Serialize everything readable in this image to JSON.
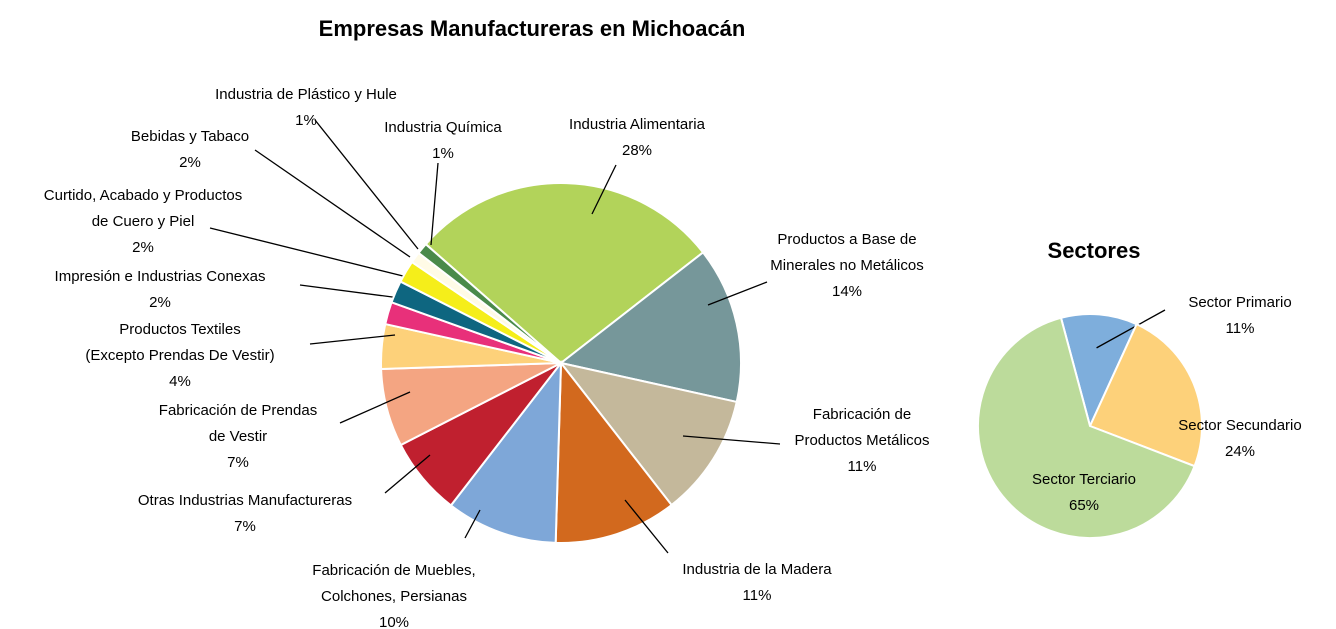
{
  "chart_data": [
    {
      "type": "pie",
      "title": "Empresas Manufactureras en Michoacán",
      "categories": [
        "Industria Alimentaria",
        "Productos a Base de Minerales no Metálicos",
        "Fabricación de Productos Metálicos",
        "Industria de la Madera",
        "Fabricación de Muebles, Colchones, Persianas",
        "Otras Industrias Manufactureras",
        "Fabricación de Prendas de Vestir",
        "Productos Textiles (Excepto Prendas De Vestir)",
        "Impresión e Industrias Conexas",
        "Curtido, Acabado y Productos de Cuero y Piel",
        "Bebidas y Tabaco",
        "Industria de Plástico y Hule",
        "Industria Química"
      ],
      "values": [
        28,
        14,
        11,
        11,
        10,
        7,
        7,
        4,
        2,
        2,
        2,
        1,
        1
      ],
      "value_labels": [
        "28%",
        "14%",
        "11%",
        "11%",
        "10%",
        "7%",
        "7%",
        "4%",
        "2%",
        "2%",
        "2%",
        "1%",
        "1%"
      ],
      "colors": [
        "#b2d35a",
        "#76979a",
        "#c4b89b",
        "#d2691e",
        "#7ea7d8",
        "#c0202f",
        "#f4a582",
        "#fdd17a",
        "#e8307a",
        "#0e6680",
        "#f5ee1a",
        "#fffbe6",
        "#4a8a4a"
      ]
    },
    {
      "type": "pie",
      "title": "Sectores",
      "categories": [
        "Sector Primario",
        "Sector Secundario",
        "Sector Terciario"
      ],
      "values": [
        11,
        24,
        65
      ],
      "value_labels": [
        "11%",
        "24%",
        "65%"
      ],
      "colors": [
        "#7eaedc",
        "#fdd17a",
        "#bcdb9b"
      ]
    }
  ]
}
